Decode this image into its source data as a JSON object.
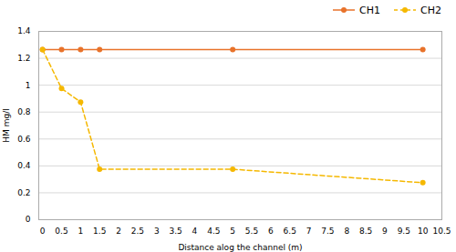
{
  "chart_data": {
    "type": "line",
    "xlabel": "Distance alog the channel (m)",
    "ylabel": "HM mg/l",
    "x": [
      0,
      0.5,
      1,
      1.5,
      5,
      10
    ],
    "series": [
      {
        "name": "CH1",
        "color": "#e8722a",
        "line_style": "solid",
        "marker": "circle",
        "values": [
          1.265,
          1.265,
          1.265,
          1.265,
          1.265,
          1.265
        ]
      },
      {
        "name": "CH2",
        "color": "#f5b800",
        "line_style": "dashed",
        "marker": "circle",
        "values": [
          1.265,
          0.975,
          0.875,
          0.375,
          0.375,
          0.275
        ]
      }
    ],
    "xlim": [
      -0.1,
      10.5
    ],
    "ylim": [
      0,
      1.4
    ],
    "xticks": [
      0,
      0.5,
      1,
      1.5,
      2,
      2.5,
      3,
      3.5,
      4,
      4.5,
      5,
      5.5,
      6,
      6.5,
      7,
      7.5,
      8,
      8.5,
      9,
      9.5,
      10,
      10.5
    ],
    "yticks": [
      0,
      0.2,
      0.4,
      0.6,
      0.8,
      1,
      1.2,
      1.4
    ],
    "grid": true,
    "legend": "upper right"
  }
}
